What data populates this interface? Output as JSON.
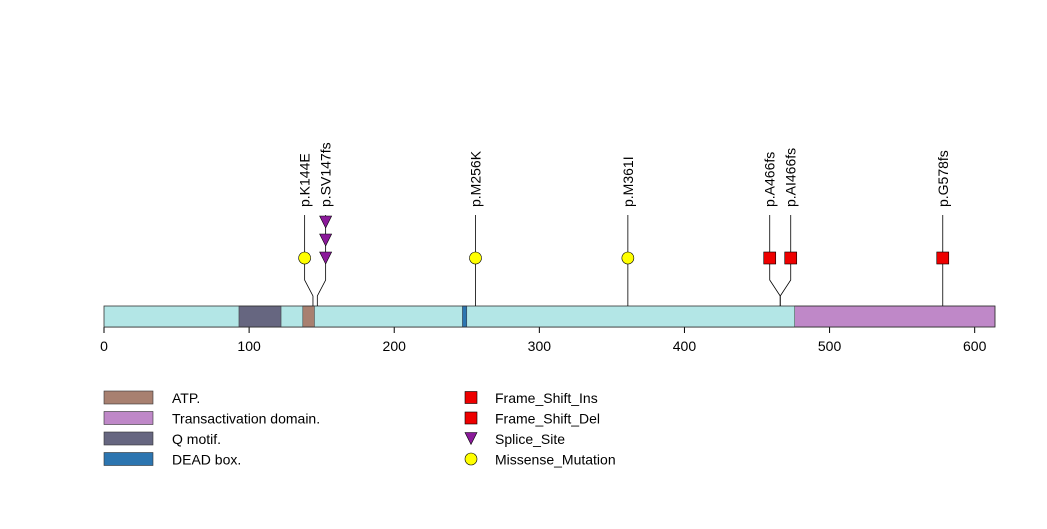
{
  "chart_data": {
    "type": "lollipop",
    "protein_length": 614,
    "xaxis": {
      "ticks": [
        0,
        100,
        200,
        300,
        400,
        500,
        600
      ],
      "tick_labels": [
        "0",
        "100",
        "200",
        "300",
        "400",
        "500",
        "600"
      ],
      "range": [
        0,
        614
      ]
    },
    "backbone_color": "#b3e6e6",
    "domains": [
      {
        "name": "Q motif.",
        "start": 93,
        "end": 122,
        "color": "#666680"
      },
      {
        "name": "ATP.",
        "start": 137,
        "end": 145,
        "color": "#a88070"
      },
      {
        "name": "DEAD box.",
        "start": 247,
        "end": 250,
        "color": "#2c75b0"
      },
      {
        "name": "Transactivation domain.",
        "start": 476,
        "end": 614,
        "color": "#bf88c8"
      }
    ],
    "mutations": [
      {
        "label": "p.K144E",
        "position": 144,
        "type": "Missense_Mutation",
        "count": 1
      },
      {
        "label": "p.SV147fs",
        "position": 147,
        "type": "Splice_Site",
        "count": 3
      },
      {
        "label": "p.M256K",
        "position": 256,
        "type": "Missense_Mutation",
        "count": 1
      },
      {
        "label": "p.M361I",
        "position": 361,
        "type": "Missense_Mutation",
        "count": 1
      },
      {
        "label": "p.A466fs",
        "position": 466,
        "type": "Frame_Shift_Ins",
        "count": 1
      },
      {
        "label": "p.AI466fs",
        "position": 466,
        "type": "Frame_Shift_Del",
        "count": 1
      },
      {
        "label": "p.G578fs",
        "position": 578,
        "type": "Frame_Shift_Del",
        "count": 1
      }
    ],
    "legend_domains": [
      {
        "name": "ATP.",
        "color": "#a88070"
      },
      {
        "name": "Transactivation domain.",
        "color": "#bf88c8"
      },
      {
        "name": "Q motif.",
        "color": "#666680"
      },
      {
        "name": "DEAD box.",
        "color": "#2c75b0"
      }
    ],
    "legend_mutations": [
      {
        "name": "Frame_Shift_Ins",
        "shape": "square",
        "color": "#ee0000"
      },
      {
        "name": "Frame_Shift_Del",
        "shape": "square",
        "color": "#ee0000"
      },
      {
        "name": "Splice_Site",
        "shape": "triangle",
        "color": "#8b1a9a"
      },
      {
        "name": "Missense_Mutation",
        "shape": "circle",
        "color": "#ffff00"
      }
    ]
  }
}
